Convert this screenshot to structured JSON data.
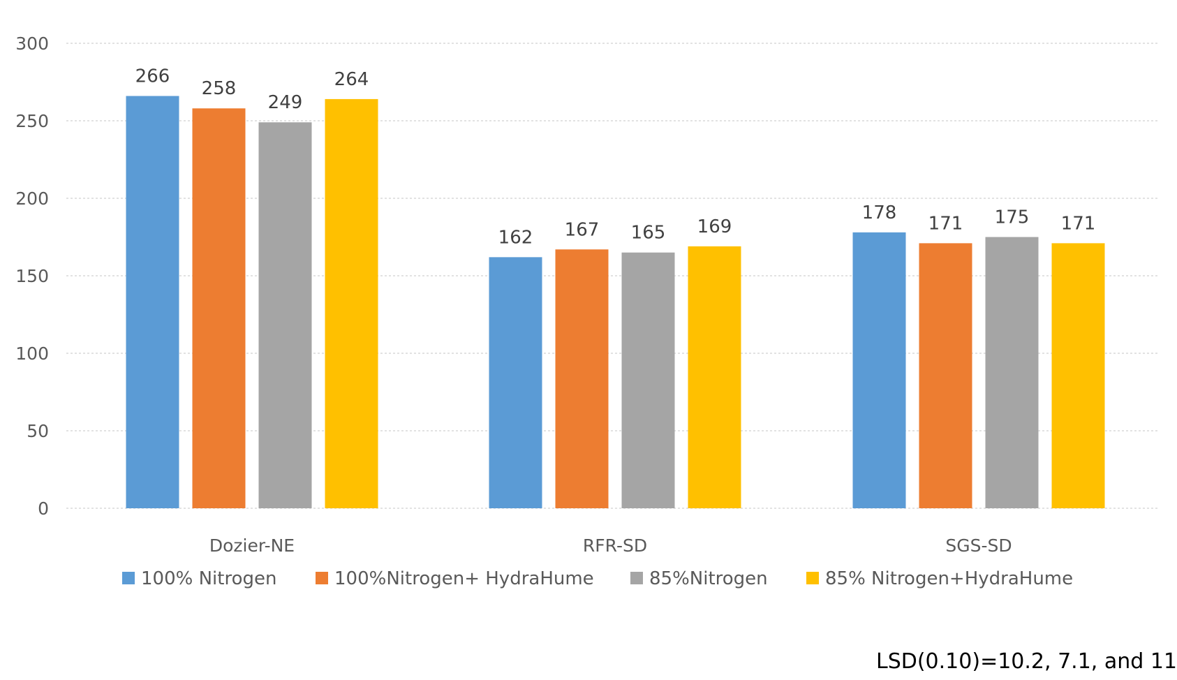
{
  "chart_data": {
    "type": "bar",
    "title": "",
    "xlabel": "",
    "ylabel": "",
    "categories": [
      "Dozier-NE",
      "RFR-SD",
      "SGS-SD"
    ],
    "ylim": [
      0,
      300
    ],
    "yticks": [
      0,
      50,
      100,
      150,
      200,
      250,
      300
    ],
    "grid": true,
    "legend": "bottom",
    "series": [
      {
        "name": "100% Nitrogen",
        "color": "#5B9BD5",
        "values": [
          266,
          162,
          178
        ]
      },
      {
        "name": "100%Nitrogen+ HydraHume",
        "color": "#ED7D31",
        "values": [
          258,
          167,
          171
        ]
      },
      {
        "name": "85%Nitrogen",
        "color": "#A5A5A5",
        "values": [
          249,
          165,
          175
        ]
      },
      {
        "name": "85% Nitrogen+HydraHume",
        "color": "#FFC000",
        "values": [
          264,
          169,
          171
        ]
      }
    ],
    "data_labels": [
      [
        "266",
        "162",
        "178"
      ],
      [
        "258",
        "167",
        "171"
      ],
      [
        "249",
        "165",
        "175"
      ],
      [
        "264",
        "169",
        "171"
      ]
    ],
    "yticklabels": [
      "0",
      "50",
      "100",
      "150",
      "200",
      "250",
      "300"
    ],
    "annotation": "LSD(0.10)=10.2, 7.1, and 11"
  }
}
